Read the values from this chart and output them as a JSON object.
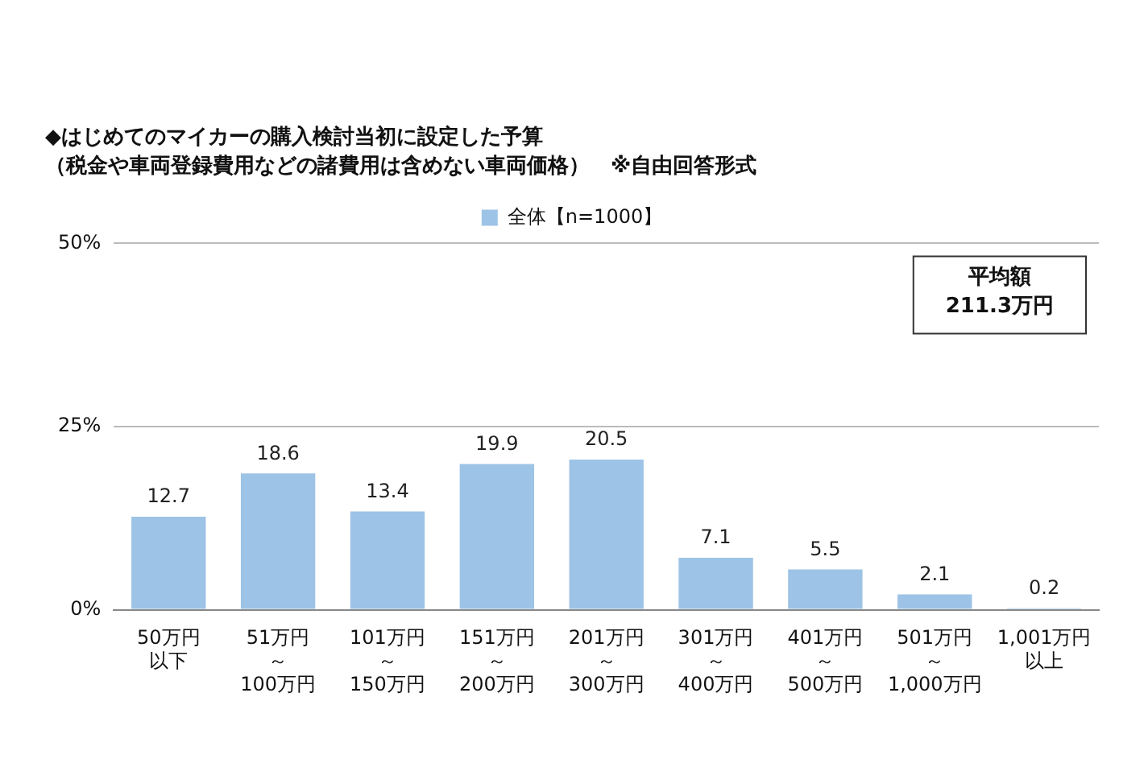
{
  "chart_data": {
    "type": "bar",
    "title": "◆はじめてのマイカーの購入検討当初に設定した予算",
    "subtitle": "（税金や車両登録費用などの諸費用は含めない車両価格）　※自由回答形式",
    "categories": [
      "50万円以下",
      "51万円～100万円",
      "101万円～150万円",
      "151万円～200万円",
      "201万円～300万円",
      "301万円～400万円",
      "401万円～500万円",
      "501万円～1,000万円",
      "1,001万円以上"
    ],
    "series": [
      {
        "name": "全体【n=1000】",
        "color": "#9dc3e6",
        "values": [
          12.7,
          18.6,
          13.4,
          19.9,
          20.5,
          7.1,
          5.5,
          2.1,
          0.2
        ]
      }
    ],
    "ylim": [
      0,
      50
    ],
    "yticks": [
      {
        "value": 0,
        "label": "0%"
      },
      {
        "value": 25,
        "label": "25%"
      },
      {
        "value": 50,
        "label": "50%"
      }
    ],
    "grid": "y",
    "legend": "top",
    "data_labels": true,
    "annotations": [
      "平均額\n211.3万円"
    ]
  }
}
